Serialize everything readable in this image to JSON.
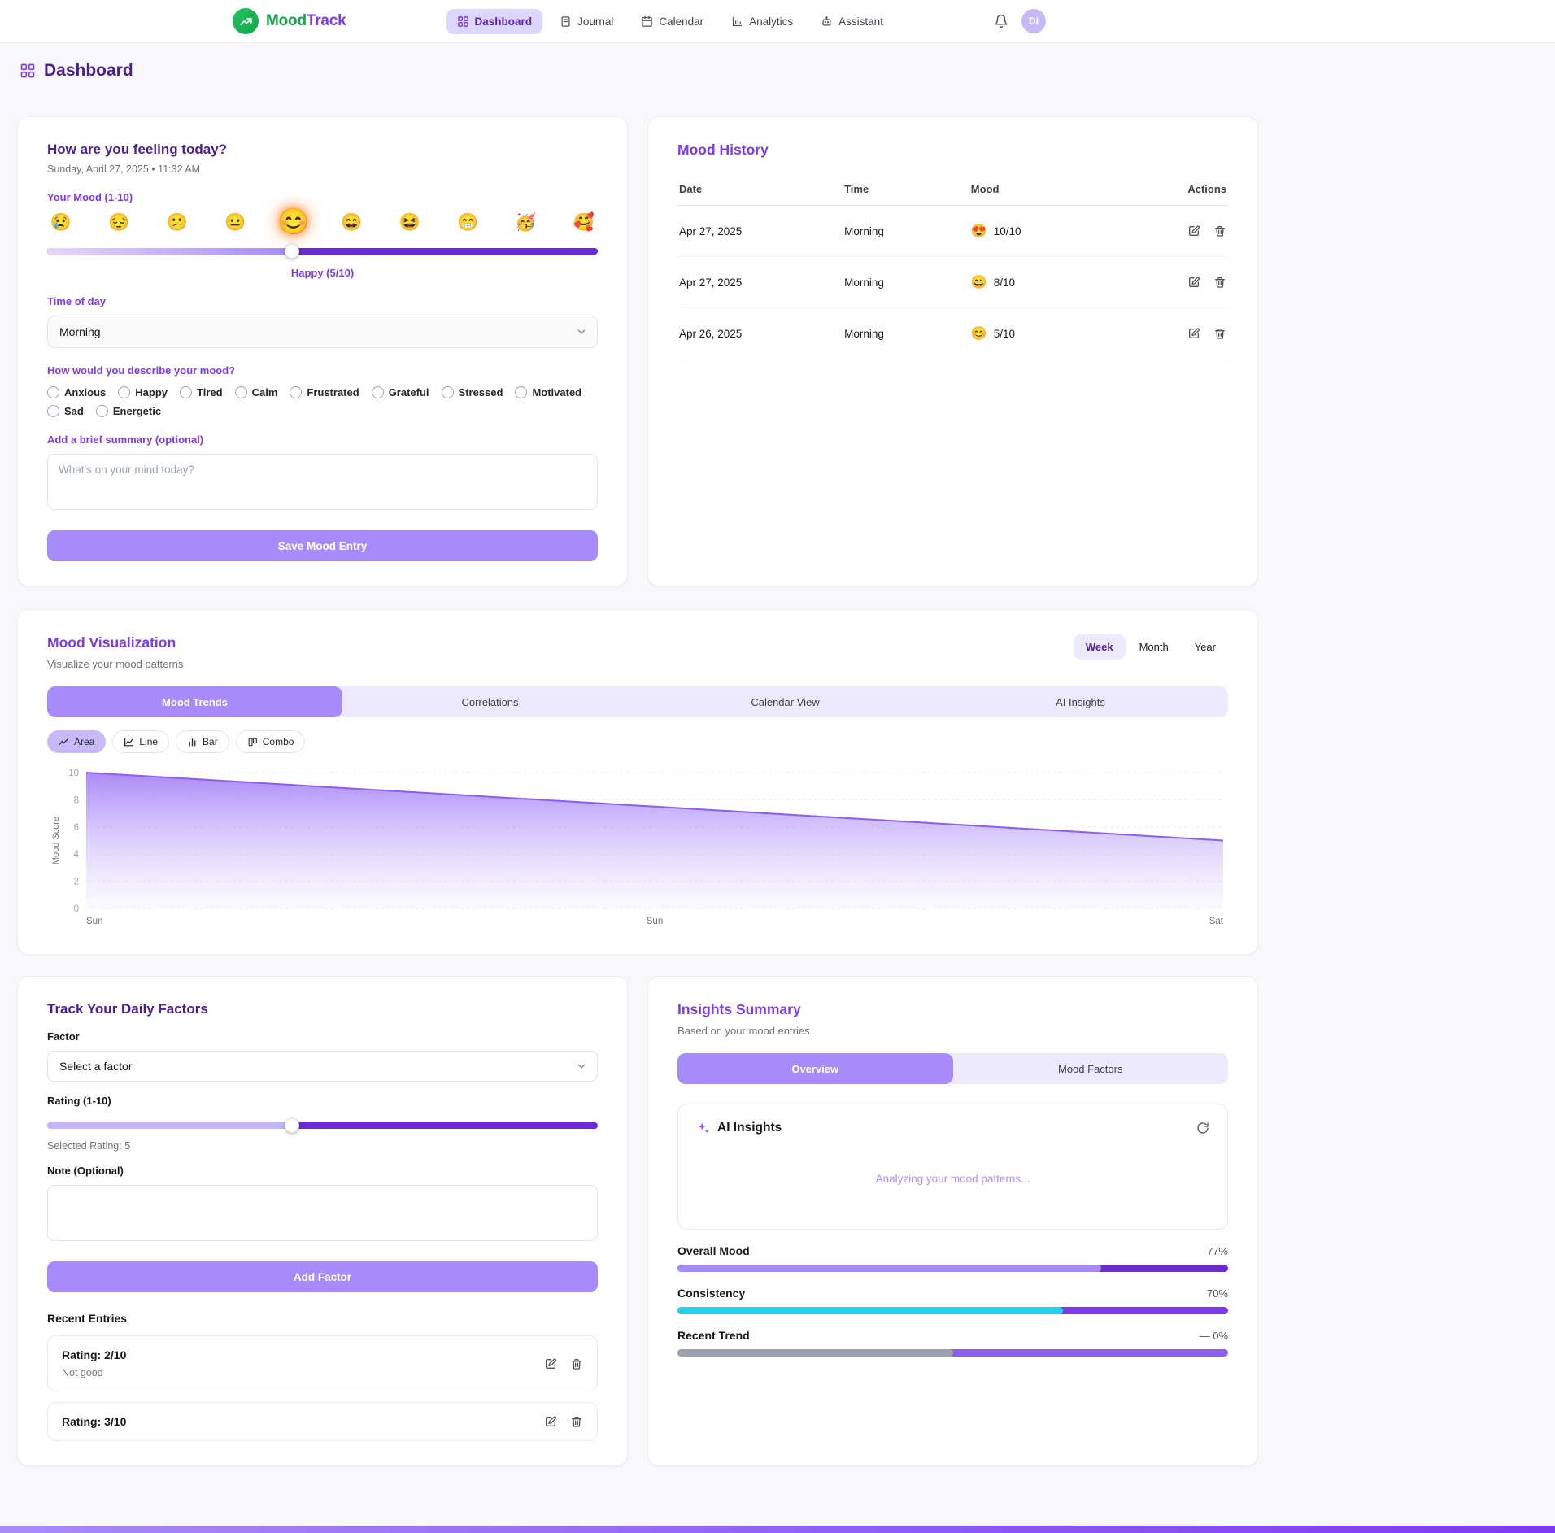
{
  "header": {
    "brand": {
      "name_primary": "Mood",
      "name_secondary": "Track"
    },
    "nav": [
      {
        "label": "Dashboard",
        "active": true
      },
      {
        "label": "Journal",
        "active": false
      },
      {
        "label": "Calendar",
        "active": false
      },
      {
        "label": "Analytics",
        "active": false
      },
      {
        "label": "Assistant",
        "active": false
      }
    ],
    "avatar": "DI"
  },
  "page": {
    "title": "Dashboard"
  },
  "mood_entry": {
    "title": "How are you feeling today?",
    "datetime": "Sunday, April 27, 2025 • 11:32 AM",
    "mood_label": "Your Mood (1-10)",
    "emojis": [
      "😢",
      "😔",
      "😕",
      "😐",
      "😊",
      "😄",
      "😆",
      "😁",
      "🥳",
      "🥰"
    ],
    "selected_index": 4,
    "slider_value": 5,
    "slider_caption": "Happy (5/10)",
    "time_label": "Time of day",
    "time_value": "Morning",
    "describe_label": "How would you describe your mood?",
    "mood_options": [
      "Anxious",
      "Happy",
      "Tired",
      "Calm",
      "Frustrated",
      "Grateful",
      "Stressed",
      "Motivated",
      "Sad",
      "Energetic"
    ],
    "summary_label": "Add a brief summary (optional)",
    "summary_placeholder": "What's on your mind today?",
    "save_button": "Save Mood Entry"
  },
  "mood_history": {
    "title": "Mood History",
    "columns": [
      "Date",
      "Time",
      "Mood",
      "Actions"
    ],
    "rows": [
      {
        "date": "Apr 27, 2025",
        "time": "Morning",
        "emoji": "😍",
        "score": "10/10"
      },
      {
        "date": "Apr 27, 2025",
        "time": "Morning",
        "emoji": "😄",
        "score": "8/10"
      },
      {
        "date": "Apr 26, 2025",
        "time": "Morning",
        "emoji": "😊",
        "score": "5/10"
      }
    ]
  },
  "visualization": {
    "title": "Mood Visualization",
    "subtitle": "Visualize your mood patterns",
    "range_options": [
      "Week",
      "Month",
      "Year"
    ],
    "active_range": "Week",
    "tabs": [
      "Mood Trends",
      "Correlations",
      "Calendar View",
      "AI Insights"
    ],
    "active_tab": "Mood Trends",
    "chart_types": [
      "Area",
      "Line",
      "Bar",
      "Combo"
    ],
    "active_chart_type": "Area"
  },
  "chart_data": {
    "type": "area",
    "x": [
      "Sun",
      "Sun",
      "Sat"
    ],
    "values": [
      10,
      7.5,
      5
    ],
    "title": "",
    "xlabel": "",
    "ylabel": "Mood Score",
    "yticks": [
      0,
      2,
      4,
      6,
      8,
      10
    ],
    "ylim": [
      0,
      10
    ],
    "grid": "dotted-horizontal",
    "line_color": "#8b5cf6"
  },
  "factors": {
    "title": "Track Your Daily Factors",
    "factor_label": "Factor",
    "factor_value": "Select a factor",
    "rating_label": "Rating (1-10)",
    "slider_value": 5,
    "selected_rating_text": "Selected Rating: 5",
    "note_label": "Note (Optional)",
    "add_button": "Add Factor",
    "recent_title": "Recent Entries",
    "entries": [
      {
        "rating": "Rating: 2/10",
        "note": "Not good"
      },
      {
        "rating": "Rating: 3/10",
        "note": ""
      }
    ]
  },
  "insights": {
    "title": "Insights Summary",
    "subtitle": "Based on your mood entries",
    "tabs": [
      "Overview",
      "Mood Factors"
    ],
    "active_tab": "Overview",
    "ai_title": "AI Insights",
    "ai_status": "Analyzing your mood patterns...",
    "metrics": [
      {
        "label": "Overall Mood",
        "display": "77%",
        "fill_percent": 77,
        "fill_color": "#a78bfa",
        "track_color": "#6d28d9"
      },
      {
        "label": "Consistency",
        "display": "70%",
        "fill_percent": 70,
        "fill_color": "#22d3ee",
        "track_color": "#7c3aed"
      },
      {
        "label": "Recent Trend",
        "display": "— 0%",
        "fill_percent": 50,
        "fill_color": "#9ca3af",
        "track_color": "#8b5cf6"
      }
    ]
  }
}
